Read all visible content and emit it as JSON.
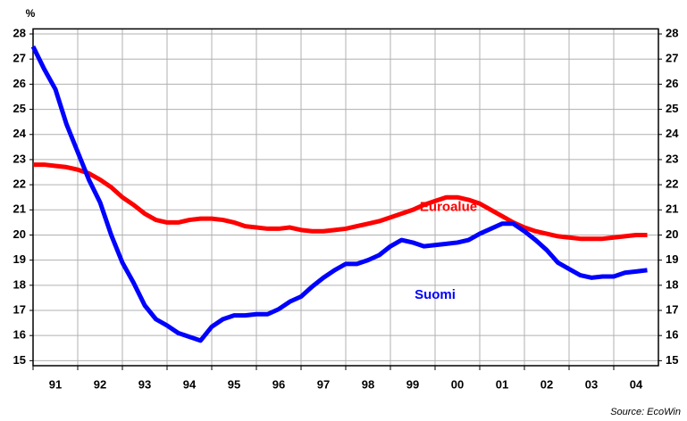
{
  "chart_data": {
    "type": "line",
    "y_unit": "%",
    "source": "Source: EcoWin",
    "x": [
      1991,
      1991.25,
      1991.5,
      1991.75,
      1992,
      1992.25,
      1992.5,
      1992.75,
      1993,
      1993.25,
      1993.5,
      1993.75,
      1994,
      1994.25,
      1994.5,
      1994.75,
      1995,
      1995.25,
      1995.5,
      1995.75,
      1996,
      1996.25,
      1996.5,
      1996.75,
      1997,
      1997.25,
      1997.5,
      1997.75,
      1998,
      1998.25,
      1998.5,
      1998.75,
      1999,
      1999.25,
      1999.5,
      1999.75,
      2000,
      2000.25,
      2000.5,
      2000.75,
      2001,
      2001.25,
      2001.5,
      2001.75,
      2002,
      2002.25,
      2002.5,
      2002.75,
      2003,
      2003.25,
      2003.5,
      2003.75,
      2004,
      2004.25,
      2004.5,
      2004.75
    ],
    "series": [
      {
        "name": "Euroalue",
        "color": "#ff0000",
        "label_at": [
          2000.3,
          21.1
        ],
        "values": [
          22.8,
          22.8,
          22.75,
          22.7,
          22.6,
          22.45,
          22.2,
          21.9,
          21.5,
          21.2,
          20.85,
          20.6,
          20.5,
          20.5,
          20.6,
          20.65,
          20.65,
          20.6,
          20.5,
          20.35,
          20.3,
          20.25,
          20.25,
          20.3,
          20.2,
          20.15,
          20.15,
          20.2,
          20.25,
          20.35,
          20.45,
          20.55,
          20.7,
          20.85,
          21.0,
          21.2,
          21.35,
          21.5,
          21.5,
          21.4,
          21.25,
          21.0,
          20.75,
          20.5,
          20.3,
          20.15,
          20.05,
          19.95,
          19.9,
          19.85,
          19.85,
          19.85,
          19.9,
          19.95,
          20.0,
          20.0
        ]
      },
      {
        "name": "Suomi",
        "color": "#0000ff",
        "label_at": [
          2000.0,
          17.6
        ],
        "values": [
          27.5,
          26.6,
          25.8,
          24.4,
          23.3,
          22.2,
          21.3,
          20.0,
          18.9,
          18.1,
          17.2,
          16.65,
          16.4,
          16.1,
          15.95,
          15.8,
          16.35,
          16.65,
          16.8,
          16.8,
          16.85,
          16.85,
          17.05,
          17.35,
          17.55,
          17.95,
          18.3,
          18.6,
          18.85,
          18.85,
          19.0,
          19.2,
          19.55,
          19.8,
          19.7,
          19.55,
          19.6,
          19.65,
          19.7,
          19.8,
          20.05,
          20.25,
          20.45,
          20.45,
          20.15,
          19.8,
          19.4,
          18.9,
          18.65,
          18.4,
          18.3,
          18.35,
          18.35,
          18.5,
          18.55,
          18.6
        ]
      }
    ],
    "xlim": [
      1991,
      2005
    ],
    "xticks": [
      {
        "value": 1991.5,
        "label": "91"
      },
      {
        "value": 1992.5,
        "label": "92"
      },
      {
        "value": 1993.5,
        "label": "93"
      },
      {
        "value": 1994.5,
        "label": "94"
      },
      {
        "value": 1995.5,
        "label": "95"
      },
      {
        "value": 1996.5,
        "label": "96"
      },
      {
        "value": 1997.5,
        "label": "97"
      },
      {
        "value": 1998.5,
        "label": "98"
      },
      {
        "value": 1999.5,
        "label": "99"
      },
      {
        "value": 2000.5,
        "label": "00"
      },
      {
        "value": 2001.5,
        "label": "01"
      },
      {
        "value": 2002.5,
        "label": "02"
      },
      {
        "value": 2003.5,
        "label": "03"
      },
      {
        "value": 2004.5,
        "label": "04"
      }
    ],
    "ylim": [
      14.8,
      28.2
    ],
    "yticks": [
      15,
      16,
      17,
      18,
      19,
      20,
      21,
      22,
      23,
      24,
      25,
      26,
      27,
      28
    ],
    "grid": true
  }
}
